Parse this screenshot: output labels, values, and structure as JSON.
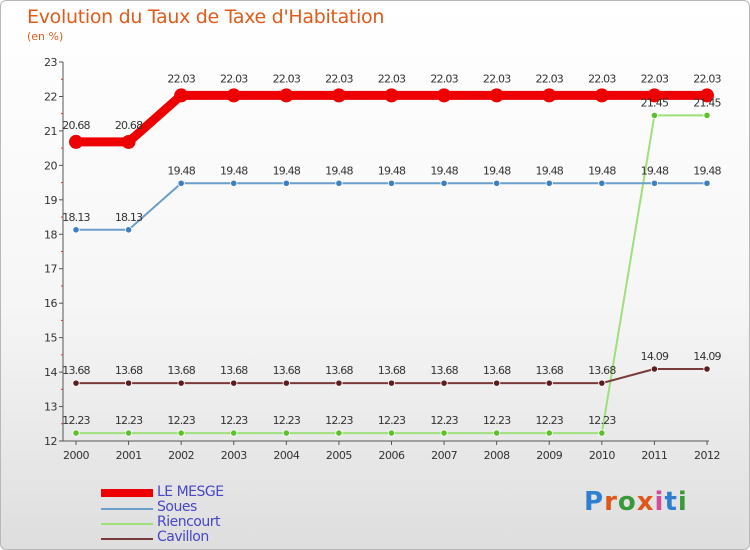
{
  "title": "Evolution du Taux de Taxe d'Habitation",
  "unit": "(en %)",
  "logo": {
    "text": "Proxiti",
    "colors": [
      "#2e7fd0",
      "#e0571c",
      "#3a9a3a",
      "#e0571c",
      "#d64a9a",
      "#2e7fd0",
      "#3a9a3a"
    ]
  },
  "chart_data": {
    "type": "line",
    "title": "Evolution du Taux de Taxe d'Habitation",
    "ylabel": "(en %)",
    "x": [
      2000,
      2001,
      2002,
      2003,
      2004,
      2005,
      2006,
      2007,
      2008,
      2009,
      2010,
      2011,
      2012
    ],
    "ylim": [
      12,
      23
    ],
    "yticks": [
      12,
      13,
      14,
      15,
      16,
      17,
      18,
      19,
      20,
      21,
      22,
      23
    ],
    "grid": false,
    "legend": "bottom-left",
    "series": [
      {
        "name": "LE MESGE",
        "color": "#ee0000",
        "values": [
          20.68,
          20.68,
          22.03,
          22.03,
          22.03,
          22.03,
          22.03,
          22.03,
          22.03,
          22.03,
          22.03,
          22.03,
          22.03
        ],
        "labels": [
          "20.68",
          "20.68",
          "22.03",
          "22.03",
          "22.03",
          "22.03",
          "22.03",
          "22.03",
          "22.03",
          "22.03",
          "22.03",
          "22.03",
          "22.03"
        ]
      },
      {
        "name": "Soues",
        "color": "#6a9ecb",
        "marker": "#3d7fbf",
        "values": [
          18.13,
          18.13,
          19.48,
          19.48,
          19.48,
          19.48,
          19.48,
          19.48,
          19.48,
          19.48,
          19.48,
          19.48,
          19.48
        ],
        "labels": [
          "18.13",
          "18.13",
          "19.48",
          "19.48",
          "19.48",
          "19.48",
          "19.48",
          "19.48",
          "19.48",
          "19.48",
          "19.48",
          "19.48",
          "19.48"
        ]
      },
      {
        "name": "Riencourt",
        "color": "#9ee07a",
        "marker": "#5cc12c",
        "values": [
          12.23,
          12.23,
          12.23,
          12.23,
          12.23,
          12.23,
          12.23,
          12.23,
          12.23,
          12.23,
          12.23,
          21.45,
          21.45
        ],
        "labels": [
          "12.23",
          "12.23",
          "12.23",
          "12.23",
          "12.23",
          "12.23",
          "12.23",
          "12.23",
          "12.23",
          "12.23",
          "12.23",
          "21.45",
          "21.45"
        ]
      },
      {
        "name": "Cavillon",
        "color": "#7a3a3a",
        "marker": "#5a1e1e",
        "values": [
          13.68,
          13.68,
          13.68,
          13.68,
          13.68,
          13.68,
          13.68,
          13.68,
          13.68,
          13.68,
          13.68,
          14.09,
          14.09
        ],
        "labels": [
          "13.68",
          "13.68",
          "13.68",
          "13.68",
          "13.68",
          "13.68",
          "13.68",
          "13.68",
          "13.68",
          "13.68",
          "13.68",
          "14.09",
          "14.09"
        ]
      }
    ]
  }
}
